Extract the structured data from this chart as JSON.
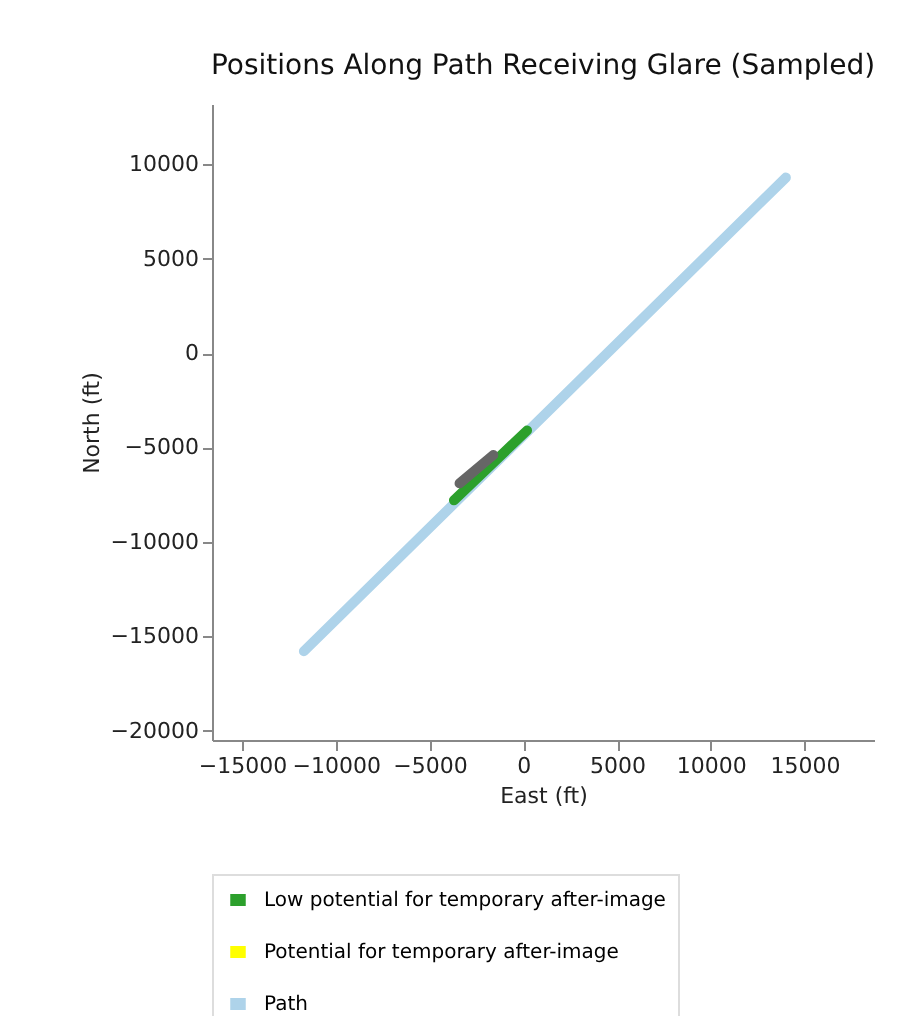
{
  "chart_data": {
    "type": "line",
    "title": "Positions Along Path Receiving Glare (Sampled)",
    "xlabel": "East (ft)",
    "ylabel": "North (ft)",
    "series": [
      {
        "name": "Low potential for temporary after-image",
        "color": "#2ca02c",
        "x": [
          -3700,
          200
        ],
        "values": [
          -7800,
          -4100
        ]
      },
      {
        "name": "Potential for temporary after-image",
        "color": "#ffff00"
      },
      {
        "name": "Path",
        "color": "#aed3ea",
        "x": [
          -11700,
          14000
        ],
        "values": [
          -15800,
          9300
        ]
      },
      {
        "color": "#666666",
        "x": [
          -3400,
          -1600
        ],
        "values": [
          -6900,
          -5400
        ]
      }
    ],
    "xlim": [
      -16600,
      18700
    ],
    "ylim": [
      -20500,
      13200
    ],
    "xticks": [
      -15000,
      -10000,
      -5000,
      0,
      5000,
      10000,
      15000
    ],
    "yticks": [
      -20000,
      -15000,
      -10000,
      -5000,
      0,
      5000,
      10000
    ],
    "legend": "bottom"
  }
}
